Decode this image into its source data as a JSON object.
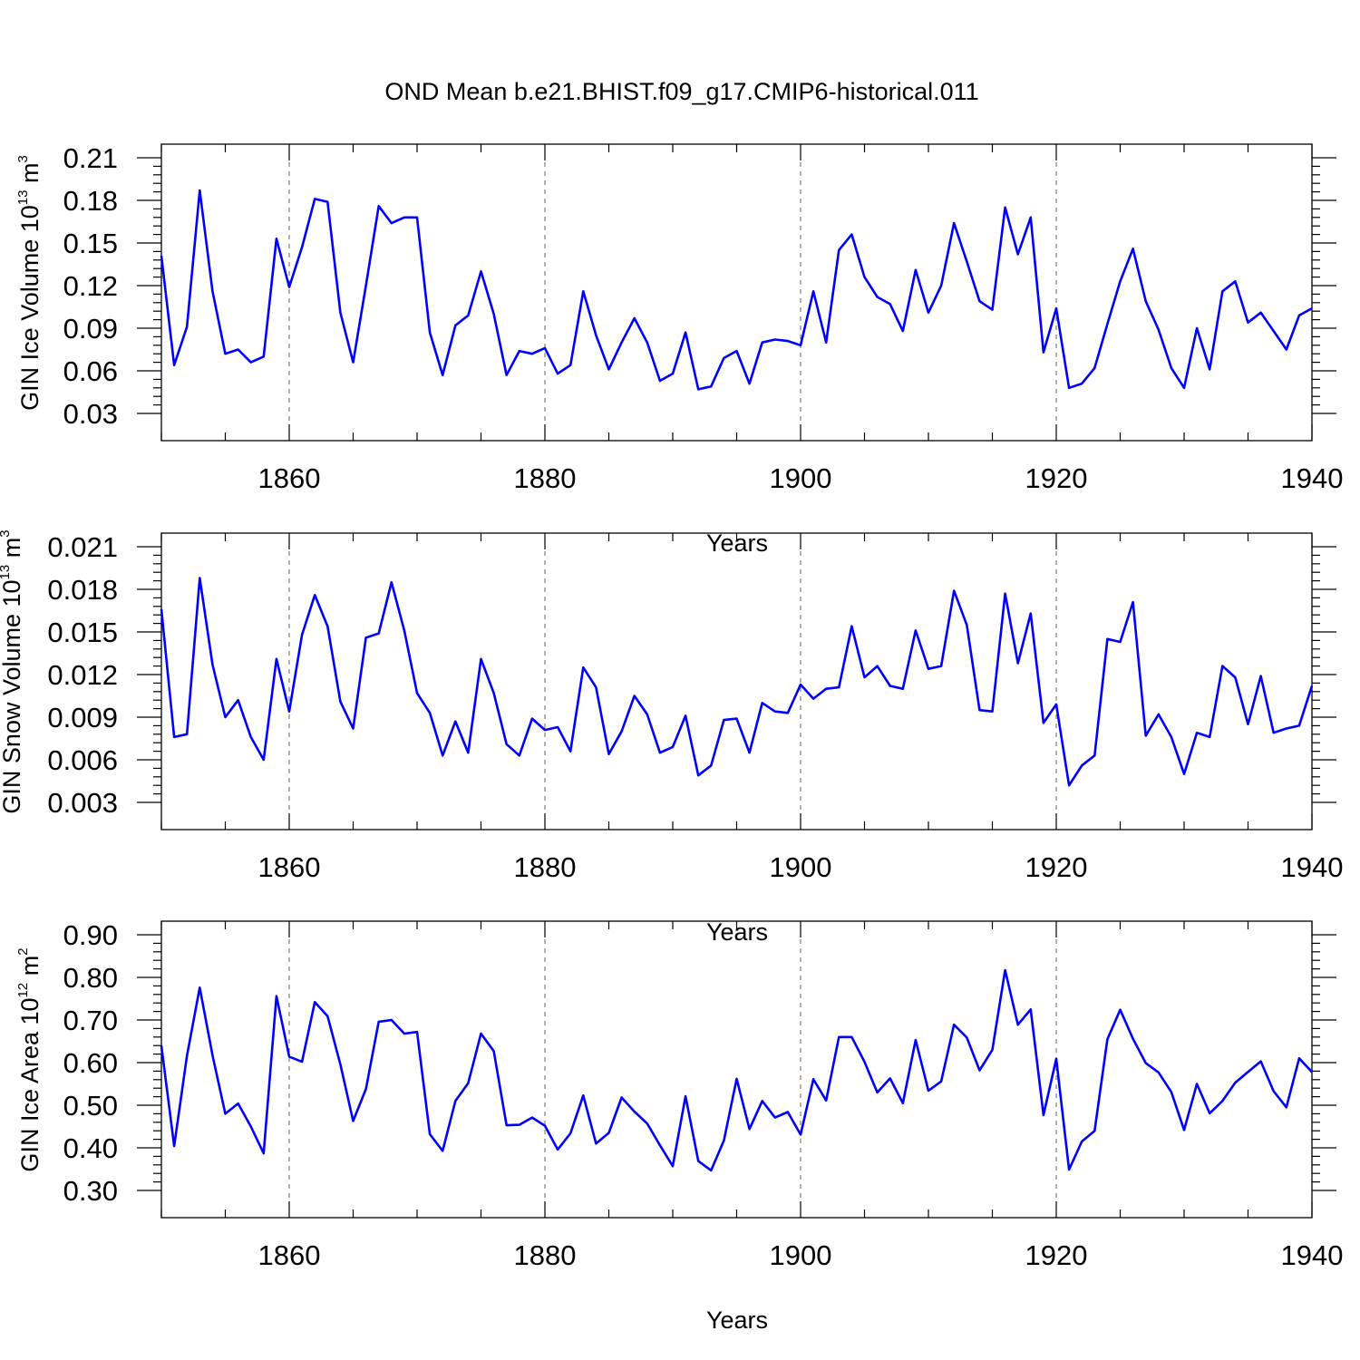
{
  "figure": {
    "title": "OND Mean b.e21.BHIST.f09_g17.CMIP6-historical.011"
  },
  "chart_data": [
    {
      "type": "line",
      "title": "OND Mean b.e21.BHIST.f09_g17.CMIP6-historical.011",
      "xlabel": "Years",
      "ylabel": {
        "prefix": "GIN Ice Volume 10",
        "sup1": "13",
        "mid": " m",
        "sup2": "3"
      },
      "xlim": [
        1850,
        1940
      ],
      "ylim": [
        0.03,
        0.21
      ],
      "xticks": [
        1860,
        1880,
        1900,
        1920,
        1940
      ],
      "yticks": [
        "0.03",
        "0.06",
        "0.09",
        "0.12",
        "0.15",
        "0.18",
        "0.21"
      ],
      "grid": "vertical dashed at major x ticks",
      "color": "#0000ff",
      "x": [
        1850,
        1851,
        1852,
        1853,
        1854,
        1855,
        1856,
        1857,
        1858,
        1859,
        1860,
        1861,
        1862,
        1863,
        1864,
        1865,
        1866,
        1867,
        1868,
        1869,
        1870,
        1871,
        1872,
        1873,
        1874,
        1875,
        1876,
        1877,
        1878,
        1879,
        1880,
        1881,
        1882,
        1883,
        1884,
        1885,
        1886,
        1887,
        1888,
        1889,
        1890,
        1891,
        1892,
        1893,
        1894,
        1895,
        1896,
        1897,
        1898,
        1899,
        1900,
        1901,
        1902,
        1903,
        1904,
        1905,
        1906,
        1907,
        1908,
        1909,
        1910,
        1911,
        1912,
        1913,
        1914,
        1915,
        1916,
        1917,
        1918,
        1919,
        1920,
        1921,
        1922,
        1923,
        1924,
        1925,
        1926,
        1927,
        1928,
        1929,
        1930,
        1931,
        1932,
        1933,
        1934,
        1935,
        1936,
        1937,
        1938,
        1939,
        1940
      ],
      "values": [
        0.141,
        0.064,
        0.091,
        0.187,
        0.116,
        0.072,
        0.075,
        0.066,
        0.07,
        0.153,
        0.119,
        0.147,
        0.181,
        0.179,
        0.101,
        0.066,
        0.12,
        0.176,
        0.164,
        0.168,
        0.168,
        0.087,
        0.057,
        0.092,
        0.099,
        0.13,
        0.1,
        0.057,
        0.074,
        0.072,
        0.076,
        0.058,
        0.064,
        0.116,
        0.085,
        0.061,
        0.08,
        0.097,
        0.08,
        0.053,
        0.058,
        0.087,
        0.047,
        0.049,
        0.069,
        0.074,
        0.051,
        0.08,
        0.082,
        0.081,
        0.078,
        0.116,
        0.08,
        0.145,
        0.156,
        0.126,
        0.112,
        0.107,
        0.088,
        0.131,
        0.101,
        0.12,
        0.164,
        0.137,
        0.109,
        0.103,
        0.175,
        0.142,
        0.168,
        0.073,
        0.104,
        0.048,
        0.051,
        0.062,
        0.093,
        0.123,
        0.146,
        0.109,
        0.089,
        0.062,
        0.048,
        0.09,
        0.061,
        0.116,
        0.123,
        0.094,
        0.101,
        0.088,
        0.075,
        0.099,
        0.104
      ]
    },
    {
      "type": "line",
      "xlabel": "Years",
      "ylabel": {
        "prefix": "GIN Snow Volume 10",
        "sup1": "13",
        "mid": " m",
        "sup2": "3"
      },
      "xlim": [
        1850,
        1940
      ],
      "ylim": [
        0.003,
        0.021
      ],
      "xticks": [
        1860,
        1880,
        1900,
        1920,
        1940
      ],
      "yticks": [
        "0.003",
        "0.006",
        "0.009",
        "0.012",
        "0.015",
        "0.018",
        "0.021"
      ],
      "grid": "vertical dashed at major x ticks",
      "color": "#0000ff",
      "x": [
        1850,
        1851,
        1852,
        1853,
        1854,
        1855,
        1856,
        1857,
        1858,
        1859,
        1860,
        1861,
        1862,
        1863,
        1864,
        1865,
        1866,
        1867,
        1868,
        1869,
        1870,
        1871,
        1872,
        1873,
        1874,
        1875,
        1876,
        1877,
        1878,
        1879,
        1880,
        1881,
        1882,
        1883,
        1884,
        1885,
        1886,
        1887,
        1888,
        1889,
        1890,
        1891,
        1892,
        1893,
        1894,
        1895,
        1896,
        1897,
        1898,
        1899,
        1900,
        1901,
        1902,
        1903,
        1904,
        1905,
        1906,
        1907,
        1908,
        1909,
        1910,
        1911,
        1912,
        1913,
        1914,
        1915,
        1916,
        1917,
        1918,
        1919,
        1920,
        1921,
        1922,
        1923,
        1924,
        1925,
        1926,
        1927,
        1928,
        1929,
        1930,
        1931,
        1932,
        1933,
        1934,
        1935,
        1936,
        1937,
        1938,
        1939,
        1940
      ],
      "values": [
        0.0166,
        0.0076,
        0.0078,
        0.0188,
        0.0127,
        0.009,
        0.0102,
        0.0076,
        0.006,
        0.0131,
        0.0094,
        0.0148,
        0.0176,
        0.0154,
        0.0101,
        0.0082,
        0.0146,
        0.0149,
        0.0185,
        0.0151,
        0.0107,
        0.0093,
        0.0063,
        0.0087,
        0.0065,
        0.0131,
        0.0107,
        0.0071,
        0.0063,
        0.0089,
        0.0081,
        0.0083,
        0.0066,
        0.0125,
        0.0111,
        0.0064,
        0.008,
        0.0105,
        0.0092,
        0.0065,
        0.0069,
        0.0091,
        0.0049,
        0.0056,
        0.0088,
        0.0089,
        0.0065,
        0.01,
        0.0094,
        0.0093,
        0.0113,
        0.0103,
        0.011,
        0.0111,
        0.0154,
        0.0118,
        0.0126,
        0.0112,
        0.011,
        0.0151,
        0.0124,
        0.0126,
        0.0179,
        0.0155,
        0.0095,
        0.0094,
        0.0177,
        0.0128,
        0.0163,
        0.0086,
        0.0099,
        0.0042,
        0.0056,
        0.0063,
        0.0145,
        0.0143,
        0.0171,
        0.0077,
        0.0092,
        0.0076,
        0.005,
        0.0079,
        0.0076,
        0.0126,
        0.0118,
        0.0085,
        0.0119,
        0.0079,
        0.0082,
        0.0084,
        0.0112
      ]
    },
    {
      "type": "line",
      "xlabel": "Years",
      "ylabel": {
        "prefix": "GIN Ice Area 10",
        "sup1": "12",
        "mid": " m",
        "sup2": "2"
      },
      "xlim": [
        1850,
        1940
      ],
      "ylim": [
        0.3,
        0.9
      ],
      "xticks": [
        1860,
        1880,
        1900,
        1920,
        1940
      ],
      "yticks": [
        "0.30",
        "0.40",
        "0.50",
        "0.60",
        "0.70",
        "0.80",
        "0.90"
      ],
      "grid": "vertical dashed at major x ticks",
      "color": "#0000ff",
      "x": [
        1850,
        1851,
        1852,
        1853,
        1854,
        1855,
        1856,
        1857,
        1858,
        1859,
        1860,
        1861,
        1862,
        1863,
        1864,
        1865,
        1866,
        1867,
        1868,
        1869,
        1870,
        1871,
        1872,
        1873,
        1874,
        1875,
        1876,
        1877,
        1878,
        1879,
        1880,
        1881,
        1882,
        1883,
        1884,
        1885,
        1886,
        1887,
        1888,
        1889,
        1890,
        1891,
        1892,
        1893,
        1894,
        1895,
        1896,
        1897,
        1898,
        1899,
        1900,
        1901,
        1902,
        1903,
        1904,
        1905,
        1906,
        1907,
        1908,
        1909,
        1910,
        1911,
        1912,
        1913,
        1914,
        1915,
        1916,
        1917,
        1918,
        1919,
        1920,
        1921,
        1922,
        1923,
        1924,
        1925,
        1926,
        1927,
        1928,
        1929,
        1930,
        1931,
        1932,
        1933,
        1934,
        1935,
        1936,
        1937,
        1938,
        1939,
        1940
      ],
      "values": [
        0.64,
        0.404,
        0.616,
        0.776,
        0.617,
        0.48,
        0.504,
        0.45,
        0.387,
        0.756,
        0.614,
        0.602,
        0.742,
        0.709,
        0.596,
        0.463,
        0.538,
        0.696,
        0.7,
        0.668,
        0.672,
        0.432,
        0.393,
        0.51,
        0.552,
        0.668,
        0.627,
        0.453,
        0.454,
        0.471,
        0.452,
        0.396,
        0.434,
        0.523,
        0.41,
        0.435,
        0.518,
        0.485,
        0.457,
        0.406,
        0.357,
        0.521,
        0.369,
        0.347,
        0.417,
        0.562,
        0.444,
        0.51,
        0.471,
        0.484,
        0.431,
        0.561,
        0.511,
        0.66,
        0.66,
        0.602,
        0.53,
        0.563,
        0.505,
        0.653,
        0.534,
        0.556,
        0.689,
        0.659,
        0.582,
        0.63,
        0.817,
        0.689,
        0.725,
        0.477,
        0.609,
        0.349,
        0.415,
        0.44,
        0.655,
        0.724,
        0.656,
        0.599,
        0.577,
        0.531,
        0.442,
        0.55,
        0.481,
        0.51,
        0.553,
        0.578,
        0.603,
        0.533,
        0.495,
        0.61,
        0.578
      ]
    }
  ]
}
